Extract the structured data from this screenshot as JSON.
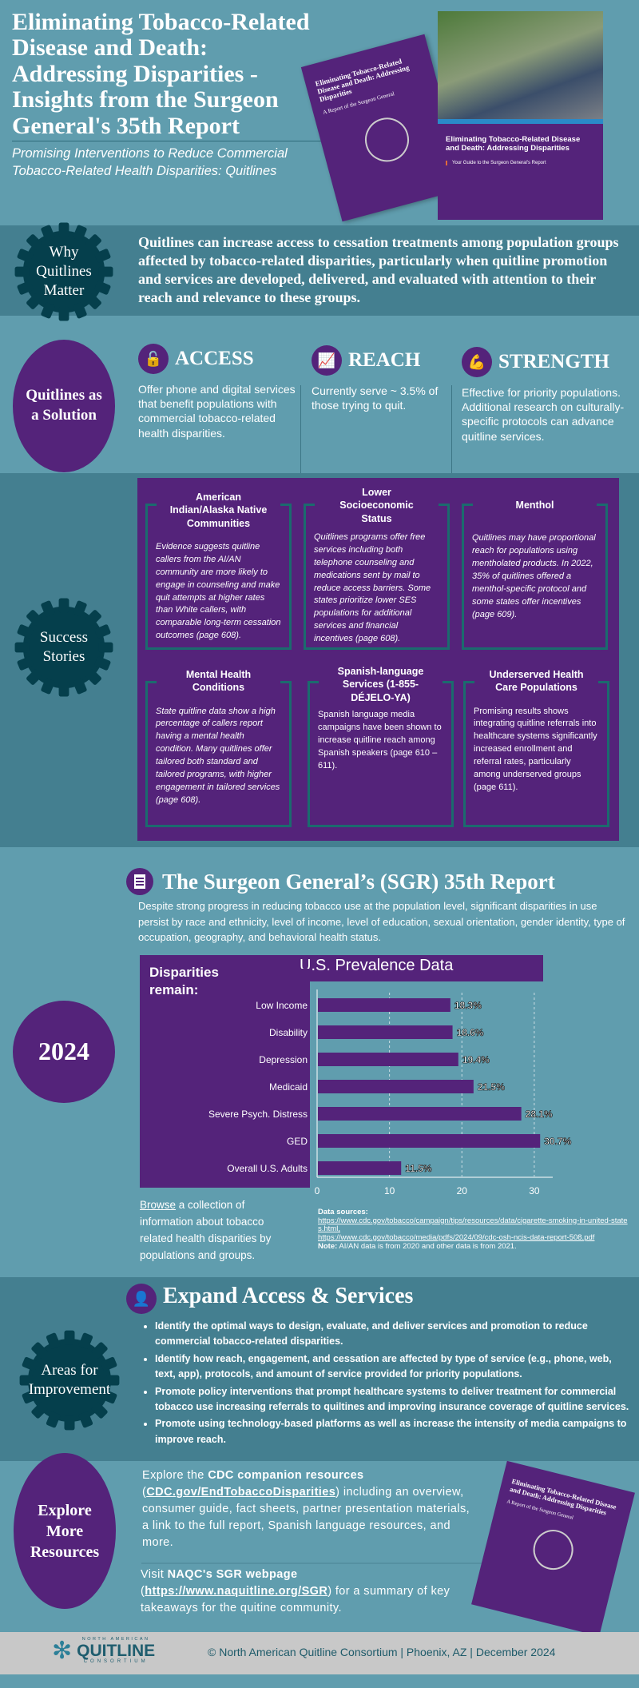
{
  "header": {
    "title": "Eliminating Tobacco-Related Disease and Death: Addressing Disparities - Insights from the Surgeon General's 35th Report",
    "subtitle": "Promising Interventions to Reduce Commercial Tobacco-Related Health Disparities:  Quitlines",
    "book_title": "Eliminating Tobacco-Related Disease and Death: Addressing Disparities",
    "book_sub": "A Report of the Surgeon General",
    "guide_title": "Eliminating Tobacco-Related Disease and Death: Addressing Disparities",
    "guide_sub": "Your Guide to the Surgeon General's Report"
  },
  "why": {
    "badge": "Why Quitlines Matter",
    "text": "Quitlines can increase access to cessation treatments among population groups affected by tobacco-related disparities, particularly when quitline promotion and services are developed, delivered, and evaluated with attention to their reach and relevance to these groups."
  },
  "solution": {
    "badge": "Quitlines as a Solution",
    "columns": [
      {
        "icon": "unlock-icon",
        "title": "ACCESS",
        "text": "Offer phone and digital services that benefit populations with commercial tobacco-related health disparities."
      },
      {
        "icon": "growth-chart-icon",
        "title": "REACH",
        "text": "Currently serve ~ 3.5% of those trying to quit."
      },
      {
        "icon": "flexed-arm-icon",
        "title": "STRENGTH",
        "text": "Effective for priority populations. Additional research on culturally-specific protocols can advance quitline services."
      }
    ]
  },
  "stories": {
    "badge": "Success Stories",
    "items": [
      {
        "title": "American Indian/Alaska Native Communities",
        "text": "Evidence suggests quitline callers from the AI/AN community are more likely to engage in counseling and make quit attempts at higher rates than White callers, with comparable long-term cessation outcomes (page 608)."
      },
      {
        "title": "Lower Socioeconomic Status",
        "text": "Quitlines programs offer free services including both telephone counseling and medications sent by mail to reduce access barriers. Some states prioritize lower SES populations for additional services and financial incentives (page 608)."
      },
      {
        "title": "Menthol",
        "text": "Quitlines may have proportional reach for populations using mentholated products. In 2022, 35% of quitlines offered a menthol-specific protocol and some states offer incentives (page 609)."
      },
      {
        "title": "Mental Health Conditions",
        "text": "State quitline data show a high percentage of callers report having a mental health condition. Many quitlines offer tailored both standard and tailored programs, with higher engagement in tailored services (page 608)."
      },
      {
        "title": "Spanish-language Services (1-855-DÉJELO-YA)",
        "text": "Spanish language media campaigns have been shown to increase quitline reach among Spanish speakers (page 610 – 611)."
      },
      {
        "title": "Underserved Health Care Populations",
        "text": "Promising results shows integrating quitline referrals into healthcare systems significantly increased enrollment and referral rates, particularly among underserved groups (page 611)."
      }
    ]
  },
  "sgr": {
    "year": "2024",
    "icon": "document-icon",
    "title": "The Surgeon General’s (SGR) 35th Report",
    "text": "Despite strong progress in reducing tobacco use at the population level, significant disparities in use persist by race and ethnicity, level of income, level of education, sexual orientation, gender identity, type of occupation, geography, and behavioral health status.",
    "browse_link": "Browse",
    "browse_text": " a collection of information about tobacco related health disparities by populations and groups.",
    "sources_label": "Data sources:",
    "source1": "https://www.cdc.gov/tobacco/campaign/tips/resources/data/cigarette-smoking-in-united-states.html,",
    "source2": "https://www.cdc.gov/tobacco/media/pdfs/2024/09/cdc-osh-ncis-data-report-508.pdf",
    "note_label": "Note:",
    "note": " AI/AN data is from 2020 and other data is from 2021."
  },
  "chart_data": {
    "type": "bar",
    "orientation": "horizontal",
    "title": "U.S. Prevalence Data",
    "side_label": "Disparities remain:",
    "categories": [
      "Low Income",
      "Disability",
      "Depression",
      "Medicaid",
      "Severe Psych. Distress",
      "GED",
      "Overall U.S. Adults"
    ],
    "values": [
      18.3,
      18.6,
      19.4,
      21.5,
      28.1,
      30.7,
      11.5
    ],
    "labels": [
      "18.3%",
      "18.6%",
      "19.4%",
      "21.5%",
      "28.1%",
      "30.7%",
      "11.5%"
    ],
    "xticks": [
      0,
      10,
      20,
      30
    ],
    "xlim": [
      0,
      32
    ],
    "grid": true,
    "bar_color": "#54237a"
  },
  "improve": {
    "badge": "Areas for Improvement",
    "icon": "headset-person-icon",
    "title": "Expand Access & Services",
    "bullets": [
      "Identify the optimal ways to design, evaluate, and deliver services and promotion to reduce commercial tobacco-related disparities.",
      "Identify how reach, engagement, and cessation are affected by type of service (e.g., phone, web, text, app), protocols, and amount of service provided for priority populations.",
      "Promote policy interventions that prompt healthcare systems to deliver treatment for commercial tobacco use increasing referrals to quiltines and improving insurance coverage of quitline services.",
      "Promote using technology-based platforms as well as increase the intensity of media campaigns to improve reach."
    ]
  },
  "explore": {
    "badge": "Explore More Resources",
    "p1_a": "Explore the ",
    "p1_b": "CDC companion resources",
    "p1_c": "(",
    "p1_link": "CDC.gov/EndTobaccoDisparities",
    "p1_d": ") including an overview, consumer guide, fact sheets, partner presentation materials, a link to the full report, Spanish language resources, and more.",
    "p2_a": "Visit ",
    "p2_b": "NAQC's SGR webpage",
    "p2_c": "(",
    "p2_link": "https://www.naquitline.org/SGR",
    "p2_d": ") for a summary of key takeaways for the quitine community."
  },
  "footer": {
    "logo_top": "NORTH AMERICAN",
    "logo_main": "QUITLINE",
    "logo_bottom": "CONSORTIUM",
    "text": "© North American Quitline Consortium | Phoenix, AZ | December 2024"
  },
  "colors": {
    "teal": "#609dae",
    "dark_teal": "#447f90",
    "purple": "#54237a",
    "gear": "#053f4c",
    "footer": "#c8c8c8"
  }
}
